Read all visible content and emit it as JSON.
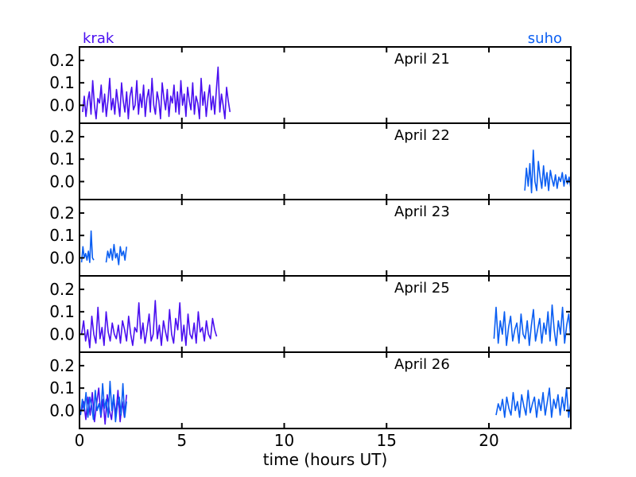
{
  "chart_data": {
    "type": "line",
    "xlabel": "time (hours UT)",
    "xlim": [
      0,
      24
    ],
    "x_ticks": [
      0,
      5,
      10,
      15,
      20
    ],
    "ylim": [
      -0.08,
      0.26
    ],
    "y_ticks": [
      0.0,
      0.1,
      0.2
    ],
    "y_tick_labels": [
      "0.0",
      "0.1",
      "0.2"
    ],
    "grid": false,
    "legend": [
      {
        "name": "krak",
        "color": "#4a0ff0",
        "position": "top-left"
      },
      {
        "name": "suho",
        "color": "#0a5ef2",
        "position": "top-right"
      }
    ],
    "panels": [
      {
        "date_label": "April 21",
        "series": [
          {
            "name": "krak",
            "segments": [
              {
                "x_start": 0.15,
                "x_end": 7.35,
                "base": 0.0,
                "values": [
                  -0.03,
                  0.04,
                  -0.05,
                  0.02,
                  0.06,
                  -0.04,
                  0.11,
                  0.0,
                  -0.06,
                  0.03,
                  0.01,
                  0.09,
                  -0.03,
                  0.05,
                  -0.05,
                  0.02,
                  0.12,
                  -0.02,
                  0.03,
                  -0.04,
                  0.07,
                  0.01,
                  -0.05,
                  0.1,
                  0.02,
                  -0.03,
                  0.06,
                  -0.06,
                  0.04,
                  0.08,
                  -0.02,
                  0.0,
                  0.11,
                  -0.04,
                  0.05,
                  -0.01,
                  0.09,
                  -0.05,
                  0.03,
                  0.07,
                  -0.03,
                  0.12,
                  0.0,
                  -0.04,
                  0.06,
                  0.02,
                  -0.06,
                  0.1,
                  0.03,
                  -0.02,
                  0.07,
                  -0.05,
                  0.04,
                  0.01,
                  0.09,
                  -0.03,
                  0.06,
                  -0.04,
                  0.11,
                  0.0,
                  0.05,
                  -0.05,
                  0.08,
                  0.02,
                  -0.02,
                  0.1,
                  -0.04,
                  0.04,
                  0.01,
                  -0.06,
                  0.12,
                  0.0,
                  0.06,
                  -0.05,
                  0.03,
                  0.09,
                  -0.02,
                  0.04,
                  -0.04,
                  0.07,
                  0.17,
                  -0.03,
                  0.05,
                  0.0,
                  -0.06,
                  0.08,
                  0.02,
                  -0.03
                ]
              }
            ]
          }
        ]
      },
      {
        "date_label": "April 22",
        "series": [
          {
            "name": "suho",
            "segments": [
              {
                "x_start": 21.75,
                "x_end": 24.0,
                "base": 0.0,
                "values": [
                  -0.04,
                  0.06,
                  -0.02,
                  0.08,
                  -0.05,
                  0.14,
                  0.0,
                  -0.04,
                  0.09,
                  0.02,
                  -0.03,
                  0.07,
                  -0.02,
                  0.04,
                  -0.04,
                  0.05,
                  0.01,
                  -0.02,
                  0.03,
                  -0.03,
                  0.02,
                  0.0,
                  0.04,
                  -0.02,
                  0.03,
                  -0.01,
                  0.02,
                  -0.03
                ]
              }
            ]
          }
        ]
      },
      {
        "date_label": "April 23",
        "series": [
          {
            "name": "suho",
            "segments": [
              {
                "x_start": 0.1,
                "x_end": 0.7,
                "base": 0.0,
                "values": [
                  -0.02,
                  0.05,
                  0.0,
                  0.02,
                  -0.01,
                  0.03,
                  -0.02,
                  0.12,
                  0.0,
                  -0.01
                ]
              },
              {
                "x_start": 1.3,
                "x_end": 2.3,
                "base": 0.0,
                "values": [
                  -0.02,
                  0.03,
                  0.0,
                  0.04,
                  -0.01,
                  0.06,
                  0.0,
                  0.02,
                  -0.03,
                  0.05,
                  0.01,
                  0.03,
                  -0.01,
                  0.05
                ]
              }
            ]
          }
        ]
      },
      {
        "date_label": "April 25",
        "series": [
          {
            "name": "krak",
            "segments": [
              {
                "x_start": 0.1,
                "x_end": 6.7,
                "base": 0.0,
                "values": [
                  0.0,
                  0.06,
                  -0.03,
                  0.02,
                  -0.06,
                  0.08,
                  0.0,
                  -0.04,
                  0.12,
                  -0.02,
                  0.03,
                  -0.05,
                  0.1,
                  0.01,
                  -0.03,
                  0.05,
                  0.0,
                  -0.02,
                  0.04,
                  -0.04,
                  0.06,
                  0.02,
                  -0.03,
                  0.08,
                  0.0,
                  -0.05,
                  0.03,
                  0.01,
                  0.14,
                  -0.02,
                  0.05,
                  -0.04,
                  0.02,
                  0.09,
                  -0.03,
                  0.0,
                  0.15,
                  -0.02,
                  0.04,
                  -0.05,
                  0.06,
                  0.01,
                  -0.03,
                  0.11,
                  0.0,
                  -0.04,
                  0.07,
                  0.02,
                  0.14,
                  -0.03,
                  0.04,
                  -0.05,
                  0.09,
                  0.0,
                  -0.02,
                  0.05,
                  -0.04,
                  0.1,
                  0.01,
                  0.03,
                  -0.03,
                  0.06,
                  0.0,
                  -0.02,
                  0.07,
                  0.02,
                  -0.01
                ]
              }
            ]
          },
          {
            "name": "suho",
            "segments": [
              {
                "x_start": 20.25,
                "x_end": 24.0,
                "base": 0.0,
                "values": [
                  -0.02,
                  0.12,
                  -0.04,
                  0.06,
                  0.0,
                  0.1,
                  -0.05,
                  0.03,
                  0.08,
                  -0.03,
                  0.02,
                  0.05,
                  -0.04,
                  0.09,
                  0.0,
                  -0.02,
                  0.06,
                  -0.05,
                  0.04,
                  0.11,
                  -0.03,
                  0.02,
                  0.07,
                  -0.04,
                  0.05,
                  0.0,
                  0.1,
                  -0.03,
                  0.13,
                  0.02,
                  -0.05,
                  0.06,
                  0.0,
                  0.12,
                  -0.04,
                  0.04,
                  0.09,
                  -0.02
                ]
              }
            ]
          }
        ]
      },
      {
        "date_label": "April 26",
        "series": [
          {
            "name": "suho",
            "segments": [
              {
                "x_start": 20.35,
                "x_end": 24.0,
                "base": 0.0,
                "values": [
                  -0.02,
                  0.03,
                  0.0,
                  0.05,
                  -0.03,
                  0.06,
                  0.01,
                  -0.02,
                  0.08,
                  0.0,
                  0.04,
                  -0.03,
                  0.07,
                  0.02,
                  -0.02,
                  0.09,
                  -0.01,
                  0.03,
                  0.06,
                  -0.03,
                  0.05,
                  0.0,
                  0.08,
                  -0.02,
                  0.04,
                  0.1,
                  -0.03,
                  0.05,
                  0.01,
                  0.07,
                  -0.02,
                  0.06,
                  0.0,
                  0.1,
                  -0.03,
                  0.04
                ]
              }
            ]
          },
          {
            "name": "krak",
            "segments": [
              {
                "x_start": 0.1,
                "x_end": 2.3,
                "base": 0.0,
                "values": [
                  0.0,
                  0.04,
                  -0.04,
                  0.06,
                  -0.02,
                  0.08,
                  -0.05,
                  0.03,
                  0.1,
                  -0.03,
                  0.05,
                  -0.06,
                  0.07,
                  0.0,
                  -0.04,
                  0.06,
                  -0.02,
                  0.09,
                  -0.05,
                  0.04,
                  -0.03,
                  0.07
                ]
              }
            ]
          },
          {
            "name": "suho",
            "segments": [
              {
                "x_start": 0.05,
                "x_end": 2.3,
                "base": 0.0,
                "values": [
                  -0.02,
                  0.05,
                  0.0,
                  0.08,
                  -0.03,
                  0.06,
                  0.02,
                  -0.04,
                  0.09,
                  0.0,
                  0.03,
                  -0.02,
                  0.12,
                  0.01,
                  0.05,
                  -0.03,
                  0.13,
                  0.0,
                  0.07,
                  -0.05,
                  0.02,
                  0.06,
                  -0.02,
                  0.12,
                  -0.03,
                  0.04
                ]
              }
            ]
          }
        ]
      }
    ]
  }
}
